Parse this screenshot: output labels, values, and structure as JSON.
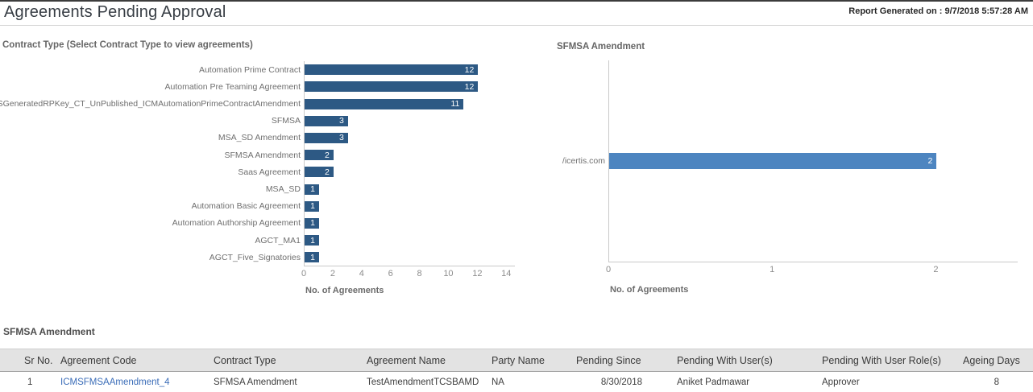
{
  "header": {
    "title": "Agreements Pending Approval",
    "generated": "Report Generated on : 9/7/2018 5:57:28 AM"
  },
  "colors": {
    "dark_bar": "#2d5984",
    "light_bar": "#4d85c0",
    "link": "#3b6db8",
    "top_border": "#3c3c3c"
  },
  "chart_data": [
    {
      "type": "bar",
      "orientation": "horizontal",
      "title": "Contract Type (Select Contract Type to view agreements)",
      "categories": [
        "Automation Prime Contract",
        "Automation Pre Teaming Agreement",
        "ESGeneratedRPKey_CT_UnPublished_ICMAutomationPrimeContractAmendment",
        "SFMSA",
        "MSA_SD Amendment",
        "SFMSA Amendment",
        "Saas Agreement",
        "MSA_SD",
        "Automation Basic Agreement",
        "Automation Authorship Agreement",
        "AGCT_MA1",
        "AGCT_Five_Signatories"
      ],
      "values": [
        12,
        12,
        11,
        3,
        3,
        2,
        2,
        1,
        1,
        1,
        1,
        1
      ],
      "xlabel": "No. of Agreements",
      "ylabel": "",
      "xlim": [
        0,
        14.6
      ],
      "xticks": [
        0,
        2,
        4,
        6,
        8,
        10,
        12,
        14
      ],
      "bar_color": "#2d5984",
      "grid": false,
      "legend": false
    },
    {
      "type": "bar",
      "orientation": "horizontal",
      "title": "SFMSA Amendment",
      "categories": [
        "/icertis.com"
      ],
      "values": [
        2
      ],
      "xlabel": "No. of Agreements",
      "ylabel": "",
      "xlim": [
        0,
        2.5
      ],
      "xticks": [
        0,
        1,
        2
      ],
      "bar_color": "#4d85c0",
      "grid": false,
      "legend": false
    }
  ],
  "table": {
    "title": "SFMSA Amendment",
    "columns": [
      "Sr No.",
      "Agreement Code",
      "Contract Type",
      "Agreement Name",
      "Party Name",
      "Pending Since",
      "Pending With User(s)",
      "Pending With User Role(s)",
      "Ageing Days"
    ],
    "rows": [
      {
        "sr_no": "1",
        "agreement_code": "ICMSFMSAAmendment_4",
        "contract_type": "SFMSA Amendment",
        "agreement_name": "TestAmendmentTCSBAMD",
        "party_name": "NA",
        "pending_since": "8/30/2018",
        "pending_with_users": "Aniket Padmawar",
        "pending_with_user_roles": "Approver",
        "ageing_days": "8"
      }
    ]
  }
}
